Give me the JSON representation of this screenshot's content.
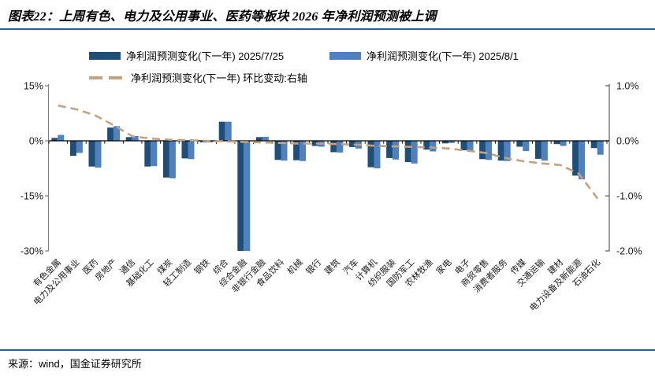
{
  "header": {
    "title": "图表22：上周有色、电力及公用事业、医药等板块 2026 年净利润预测被上调"
  },
  "legend": {
    "items": [
      {
        "label": "净利润预测变化(下一年) 2025/7/25",
        "swatch": "dark-blue-bar",
        "color": "#1f4e79"
      },
      {
        "label": "净利润预测变化(下一年) 2025/8/1",
        "swatch": "light-blue-bar",
        "color": "#4e81bd"
      },
      {
        "label": "净利润预测变化(下一年) 环比变动:右轴",
        "swatch": "tan-dashed-line",
        "color": "#c7a17e"
      }
    ]
  },
  "footer": {
    "source": "来源：wind，国金证券研究所"
  },
  "chart_data": {
    "type": "bar",
    "subtype": "grouped bars with dashed line on secondary axis",
    "categories": [
      "有色金属",
      "电力及公用事业",
      "医药",
      "房地产",
      "通信",
      "基础化工",
      "煤炭",
      "轻工制造",
      "钢铁",
      "综合",
      "综合金融",
      "非银行金融",
      "食品饮料",
      "机械",
      "银行",
      "建筑",
      "汽车",
      "计算机",
      "纺织服装",
      "国防军工",
      "农林牧渔",
      "家电",
      "电子",
      "商贸零售",
      "消费者服务",
      "传媒",
      "交通运输",
      "建材",
      "电力设备及新能源",
      "石油石化"
    ],
    "series": [
      {
        "name": "净利润预测变化(下一年) 2025/7/25",
        "type": "bar",
        "axis": "left",
        "color": "#1f4e79",
        "values": [
          0.8,
          -4.1,
          -7.0,
          3.6,
          1.0,
          -7.0,
          -10.0,
          -4.8,
          -0.4,
          5.2,
          -30.0,
          1.0,
          -5.2,
          -5.3,
          -1.4,
          -3.1,
          -1.7,
          -7.2,
          -4.7,
          -5.8,
          -2.4,
          -0.7,
          -2.6,
          -5.0,
          -5.4,
          -1.6,
          -4.9,
          -0.9,
          -9.5,
          -2.0
        ]
      },
      {
        "name": "净利润预测变化(下一年) 2025/8/1",
        "type": "bar",
        "axis": "left",
        "color": "#4e81bd",
        "values": [
          1.6,
          -3.3,
          -7.3,
          4.0,
          1.3,
          -6.9,
          -10.2,
          -5.0,
          -0.4,
          5.2,
          -30.0,
          1.1,
          -5.4,
          -5.5,
          -1.6,
          -3.2,
          -2.1,
          -7.5,
          -5.1,
          -6.2,
          -2.9,
          -0.6,
          -2.9,
          -5.2,
          -5.5,
          -2.8,
          -5.4,
          -1.4,
          -10.5,
          -3.8
        ]
      },
      {
        "name": "净利润预测变化(下一年) 环比变动:右轴",
        "type": "line",
        "style": "dashed",
        "axis": "right",
        "color": "#c7a17e",
        "values": [
          0.64,
          0.57,
          0.46,
          0.28,
          0.08,
          0.04,
          0.02,
          0.01,
          0.0,
          -0.01,
          -0.02,
          -0.03,
          -0.04,
          -0.05,
          -0.05,
          -0.06,
          -0.07,
          -0.09,
          -0.1,
          -0.11,
          -0.12,
          -0.14,
          -0.18,
          -0.22,
          -0.31,
          -0.37,
          -0.41,
          -0.44,
          -0.6,
          -1.05
        ]
      }
    ],
    "left_axis": {
      "labels": [
        "15%",
        "0%",
        "-15%",
        "-30%"
      ],
      "values": [
        15,
        0,
        -15,
        -30
      ],
      "range": [
        -30,
        15
      ]
    },
    "right_axis": {
      "labels": [
        "1.0%",
        "0.0%",
        "-1.0%",
        "-2.0%"
      ],
      "values": [
        1,
        0,
        -1,
        -2
      ],
      "range": [
        -2,
        1
      ]
    },
    "grid": false,
    "legend_position": "top"
  }
}
